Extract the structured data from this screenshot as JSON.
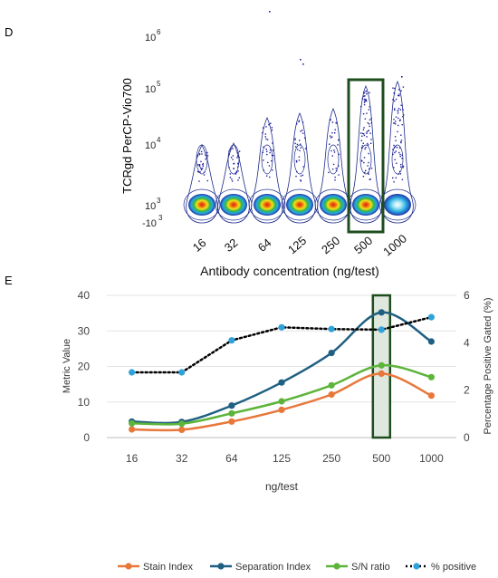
{
  "panel_d": {
    "label": "D",
    "ylabel": "TCRgd PerCP-Vio700",
    "xlabel": "Antibody concentration (ng/test)",
    "y_ticks": [
      {
        "base": "10",
        "exp": "6",
        "value": 1000000
      },
      {
        "base": "10",
        "exp": "5",
        "value": 100000
      },
      {
        "base": "10",
        "exp": "4",
        "value": 10000
      },
      {
        "base": "10",
        "exp": "3",
        "value": 1000
      },
      {
        "base": "-10",
        "exp": "3",
        "value": -1000
      }
    ],
    "categories": [
      "16",
      "32",
      "64",
      "125",
      "250",
      "500",
      "1000"
    ],
    "highlight": "500",
    "highlight_color": "#1e4d1e"
  },
  "panel_e": {
    "label": "E",
    "xlabel": "ng/test",
    "ylabel_left": "Metric Value",
    "ylabel_right": "Percentage Positive Gated (%)",
    "left_ticks": [
      "0",
      "10",
      "20",
      "30",
      "40"
    ],
    "right_ticks": [
      "0",
      "2",
      "4",
      "6"
    ],
    "highlight": "500",
    "highlight_color": "#1e4d1e",
    "highlight_fill": "#dfe8df"
  },
  "chart_data": [
    {
      "type": "scatter",
      "title": "",
      "xlabel": "Antibody concentration (ng/test)",
      "ylabel": "TCRgd PerCP-Vio700",
      "y_scale": "biexponential",
      "categories": [
        "16",
        "32",
        "64",
        "125",
        "250",
        "500",
        "1000"
      ]
    },
    {
      "type": "line",
      "title": "",
      "xlabel": "ng/test",
      "ylabel": "Metric Value",
      "ylabel_secondary": "Percentage Positive Gated (%)",
      "categories": [
        "16",
        "32",
        "64",
        "125",
        "250",
        "500",
        "1000"
      ],
      "ylim": [
        0,
        40
      ],
      "ylim_secondary": [
        0,
        6
      ],
      "legend_position": "bottom",
      "series": [
        {
          "name": "Stain Index",
          "axis": "left",
          "color": "#e8773a",
          "style": "solid",
          "values": [
            2.3,
            2.2,
            4.5,
            7.8,
            12.1,
            18.0,
            11.8
          ]
        },
        {
          "name": "Separation Index",
          "axis": "left",
          "color": "#1f5f82",
          "style": "solid",
          "values": [
            4.5,
            4.4,
            9.0,
            15.5,
            23.8,
            35.2,
            27.0
          ]
        },
        {
          "name": "S/N ratio",
          "axis": "left",
          "color": "#5db43a",
          "style": "solid",
          "values": [
            4.0,
            3.9,
            6.8,
            10.2,
            14.7,
            20.3,
            17.0
          ]
        },
        {
          "name": "% positive",
          "axis": "right",
          "color": "#000000",
          "marker_color": "#2fa3d9",
          "style": "dotted",
          "values": [
            2.75,
            2.75,
            4.1,
            4.65,
            4.58,
            4.55,
            5.08
          ]
        }
      ]
    }
  ]
}
